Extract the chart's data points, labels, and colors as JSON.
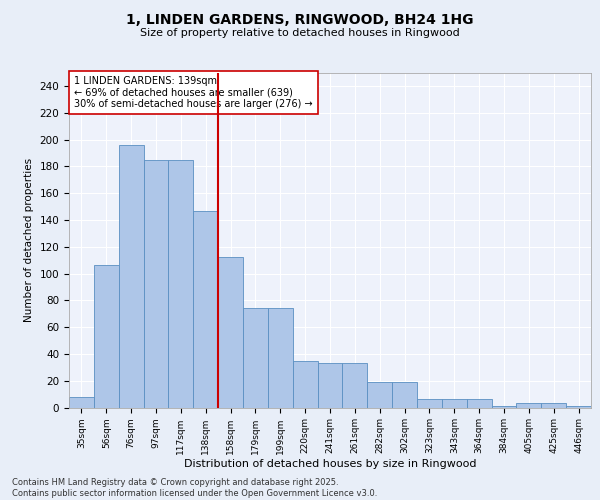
{
  "title_line1": "1, LINDEN GARDENS, RINGWOOD, BH24 1HG",
  "title_line2": "Size of property relative to detached houses in Ringwood",
  "xlabel": "Distribution of detached houses by size in Ringwood",
  "ylabel": "Number of detached properties",
  "bar_labels": [
    "35sqm",
    "56sqm",
    "76sqm",
    "97sqm",
    "117sqm",
    "138sqm",
    "158sqm",
    "179sqm",
    "199sqm",
    "220sqm",
    "241sqm",
    "261sqm",
    "282sqm",
    "302sqm",
    "323sqm",
    "343sqm",
    "364sqm",
    "384sqm",
    "405sqm",
    "425sqm",
    "446sqm"
  ],
  "bar_values": [
    8,
    106,
    196,
    185,
    185,
    147,
    112,
    74,
    74,
    35,
    33,
    33,
    19,
    19,
    6,
    6,
    6,
    1,
    3,
    3,
    1
  ],
  "bar_color": "#aec6e8",
  "bar_edge_color": "#5a8fc2",
  "vline_x": 5.5,
  "vline_color": "#cc0000",
  "annotation_text": "1 LINDEN GARDENS: 139sqm\n← 69% of detached houses are smaller (639)\n30% of semi-detached houses are larger (276) →",
  "bg_color": "#e8eef8",
  "plot_bg_color": "#eef2fb",
  "grid_color": "#ffffff",
  "yticks": [
    0,
    20,
    40,
    60,
    80,
    100,
    120,
    140,
    160,
    180,
    200,
    220,
    240
  ],
  "ylim": [
    0,
    250
  ],
  "footnote": "Contains HM Land Registry data © Crown copyright and database right 2025.\nContains public sector information licensed under the Open Government Licence v3.0."
}
